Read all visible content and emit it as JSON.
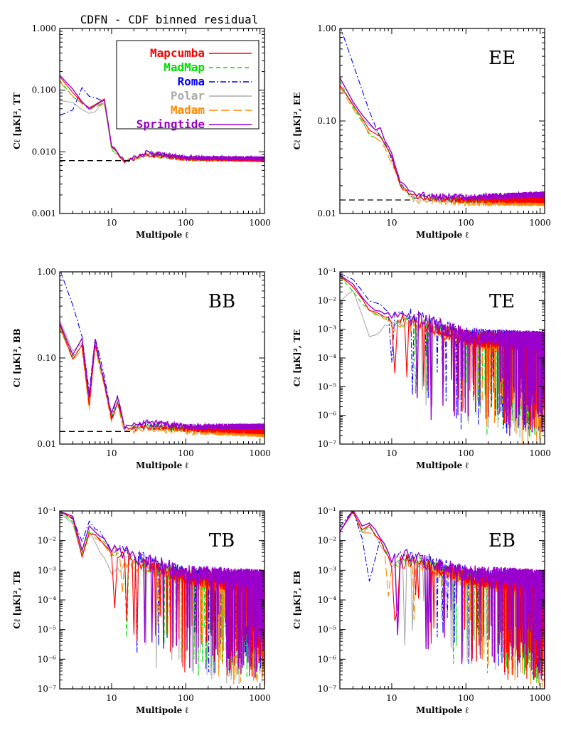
{
  "figure_title": "CDFN - CDF binned residual",
  "colors": {
    "Mapcumba": "#ff0000",
    "MadMap": "#00dd00",
    "Roma": "#0000ff",
    "Polar": "#aaaaaa",
    "Madam": "#ff8800",
    "Springtide": "#9900cc"
  },
  "chart_data": [
    {
      "type": "line",
      "panel": "TT",
      "title": "",
      "xlabel": "Multipole ℓ",
      "ylabel": "Cℓ [μK]², TT",
      "xscale": "log",
      "yscale": "log",
      "xlim": [
        2,
        1150
      ],
      "ylim": [
        0.001,
        1.0
      ],
      "x_ticks": [
        "10",
        "100",
        "1000"
      ],
      "y_ticks": [
        "0.001",
        "0.010",
        "0.100",
        "1.000"
      ],
      "panel_label": "",
      "legend": {
        "placement": "top-right",
        "entries": [
          "Mapcumba",
          "MadMap",
          "Roma",
          "Polar",
          "Madam",
          "Springtide"
        ]
      },
      "reference_level": 0.0072,
      "series": [
        {
          "name": "Mapcumba",
          "x": [
            2,
            3,
            5,
            8,
            10,
            15,
            30,
            100,
            1150
          ],
          "values": [
            0.17,
            0.09,
            0.05,
            0.07,
            0.012,
            0.007,
            0.009,
            0.0078,
            0.0075
          ]
        },
        {
          "name": "MadMap",
          "x": [
            2,
            3,
            5,
            8,
            10,
            15,
            30,
            100,
            1150
          ],
          "values": [
            0.15,
            0.08,
            0.05,
            0.065,
            0.011,
            0.007,
            0.009,
            0.0077,
            0.0074
          ]
        },
        {
          "name": "Roma",
          "x": [
            2,
            3,
            4,
            5,
            8,
            10,
            15,
            30,
            100,
            1150
          ],
          "values": [
            0.04,
            0.05,
            0.11,
            0.08,
            0.065,
            0.012,
            0.007,
            0.009,
            0.0078,
            0.0075
          ]
        },
        {
          "name": "Polar",
          "x": [
            2,
            3,
            5,
            8,
            10,
            15,
            30,
            100,
            1150
          ],
          "values": [
            0.07,
            0.06,
            0.04,
            0.06,
            0.012,
            0.007,
            0.009,
            0.0078,
            0.0075
          ]
        },
        {
          "name": "Madam",
          "x": [
            2,
            3,
            5,
            8,
            10,
            15,
            30,
            100,
            1150
          ],
          "values": [
            0.14,
            0.08,
            0.05,
            0.065,
            0.011,
            0.007,
            0.009,
            0.0076,
            0.0073
          ]
        },
        {
          "name": "Springtide",
          "x": [
            2,
            3,
            5,
            8,
            10,
            15,
            30,
            100,
            1150
          ],
          "values": [
            0.18,
            0.1,
            0.05,
            0.07,
            0.013,
            0.007,
            0.01,
            0.008,
            0.0078
          ]
        }
      ]
    },
    {
      "type": "line",
      "panel": "EE",
      "title": "",
      "xlabel": "Multipole ℓ",
      "ylabel": "Cℓ [μK]², EE",
      "xscale": "log",
      "yscale": "log",
      "xlim": [
        2,
        1150
      ],
      "ylim": [
        0.01,
        1.0
      ],
      "x_ticks": [
        "10",
        "100",
        "1000"
      ],
      "y_ticks": [
        "0.01",
        "0.10",
        "1.00"
      ],
      "panel_label": "EE",
      "reference_level": 0.014,
      "series": [
        {
          "name": "Mapcumba",
          "x": [
            2,
            3,
            5,
            7,
            10,
            13,
            20,
            100,
            1150
          ],
          "values": [
            0.25,
            0.15,
            0.08,
            0.07,
            0.04,
            0.02,
            0.015,
            0.014,
            0.014
          ]
        },
        {
          "name": "MadMap",
          "x": [
            2,
            3,
            5,
            7,
            10,
            13,
            20,
            100,
            1150
          ],
          "values": [
            0.28,
            0.15,
            0.07,
            0.07,
            0.04,
            0.02,
            0.015,
            0.014,
            0.014
          ]
        },
        {
          "name": "Roma",
          "x": [
            2,
            3,
            5,
            7,
            10,
            13,
            20,
            100,
            1150
          ],
          "values": [
            1.1,
            0.4,
            0.12,
            0.07,
            0.04,
            0.02,
            0.015,
            0.014,
            0.015
          ]
        },
        {
          "name": "Polar",
          "x": [
            2,
            3,
            5,
            7,
            10,
            13,
            20,
            100,
            1150
          ],
          "values": [
            0.25,
            0.15,
            0.09,
            0.07,
            0.04,
            0.02,
            0.015,
            0.014,
            0.014
          ]
        },
        {
          "name": "Madam",
          "x": [
            2,
            3,
            5,
            7,
            10,
            13,
            20,
            100,
            1150
          ],
          "values": [
            0.24,
            0.14,
            0.07,
            0.06,
            0.035,
            0.02,
            0.014,
            0.013,
            0.013
          ]
        },
        {
          "name": "Springtide",
          "x": [
            2,
            3,
            5,
            7,
            10,
            13,
            20,
            100,
            1150
          ],
          "values": [
            0.3,
            0.16,
            0.09,
            0.08,
            0.045,
            0.022,
            0.016,
            0.015,
            0.016
          ]
        }
      ]
    },
    {
      "type": "line",
      "panel": "BB",
      "title": "",
      "xlabel": "Multipole ℓ",
      "ylabel": "Cℓ [μK]², BB",
      "xscale": "log",
      "yscale": "log",
      "xlim": [
        2,
        1150
      ],
      "ylim": [
        0.01,
        1.0
      ],
      "x_ticks": [
        "10",
        "100",
        "1000"
      ],
      "y_ticks": [
        "0.01",
        "0.10",
        "1.00"
      ],
      "panel_label": "BB",
      "reference_level": 0.014,
      "series": [
        {
          "name": "Mapcumba",
          "x": [
            2,
            3,
            4,
            5,
            6,
            8,
            10,
            12,
            15,
            30,
            100,
            1150
          ],
          "values": [
            0.25,
            0.1,
            0.15,
            0.03,
            0.15,
            0.05,
            0.02,
            0.03,
            0.015,
            0.016,
            0.015,
            0.014
          ]
        },
        {
          "name": "MadMap",
          "x": [
            2,
            3,
            4,
            5,
            6,
            8,
            10,
            12,
            15,
            30,
            100,
            1150
          ],
          "values": [
            0.22,
            0.1,
            0.14,
            0.03,
            0.14,
            0.05,
            0.02,
            0.03,
            0.015,
            0.016,
            0.015,
            0.014
          ]
        },
        {
          "name": "Roma",
          "x": [
            2,
            3,
            4,
            5,
            6,
            8,
            10,
            12,
            15,
            30,
            100,
            1150
          ],
          "values": [
            1.1,
            0.4,
            0.18,
            0.04,
            0.18,
            0.06,
            0.02,
            0.035,
            0.015,
            0.017,
            0.015,
            0.015
          ]
        },
        {
          "name": "Polar",
          "x": [
            2,
            3,
            4,
            5,
            6,
            8,
            10,
            12,
            15,
            30,
            100,
            1150
          ],
          "values": [
            0.28,
            0.12,
            0.15,
            0.035,
            0.14,
            0.05,
            0.02,
            0.03,
            0.015,
            0.016,
            0.015,
            0.014
          ]
        },
        {
          "name": "Madam",
          "x": [
            2,
            3,
            4,
            5,
            6,
            8,
            10,
            12,
            15,
            30,
            100,
            1150
          ],
          "values": [
            0.23,
            0.1,
            0.13,
            0.025,
            0.14,
            0.045,
            0.018,
            0.03,
            0.014,
            0.015,
            0.014,
            0.013
          ]
        },
        {
          "name": "Springtide",
          "x": [
            2,
            3,
            4,
            5,
            6,
            8,
            10,
            12,
            15,
            30,
            100,
            1150
          ],
          "values": [
            0.26,
            0.11,
            0.16,
            0.035,
            0.16,
            0.05,
            0.022,
            0.035,
            0.016,
            0.018,
            0.016,
            0.016
          ]
        }
      ]
    },
    {
      "type": "line",
      "panel": "TE",
      "title": "",
      "xlabel": "Multipole ℓ",
      "ylabel": "Cℓ [μK]², TE",
      "xscale": "log",
      "yscale": "log",
      "xlim": [
        2,
        1150
      ],
      "ylim": [
        1e-07,
        0.1
      ],
      "x_ticks": [
        "10",
        "100",
        "1000"
      ],
      "y_ticks": [
        "10⁻⁷",
        "10⁻⁶",
        "10⁻⁵",
        "10⁻⁴",
        "10⁻³",
        "10⁻²",
        "10⁻¹"
      ],
      "panel_label": "TE",
      "series": [
        {
          "name": "Mapcumba",
          "x": [
            2,
            3,
            5,
            10,
            20,
            100,
            1150
          ],
          "values": [
            0.08,
            0.03,
            0.005,
            0.002,
            0.002,
            0.0005,
            0.0003
          ]
        },
        {
          "name": "MadMap",
          "x": [
            2,
            3,
            5,
            10,
            20,
            100,
            1150
          ],
          "values": [
            0.07,
            0.02,
            0.004,
            0.002,
            0.002,
            0.0005,
            0.0003
          ]
        },
        {
          "name": "Roma",
          "x": [
            2,
            3,
            5,
            10,
            20,
            100,
            1150
          ],
          "values": [
            0.09,
            0.05,
            0.01,
            0.004,
            0.003,
            0.0006,
            0.0004
          ]
        },
        {
          "name": "Polar",
          "x": [
            2,
            3,
            5,
            10,
            20,
            100,
            1150
          ],
          "values": [
            0.01,
            0.02,
            0.0005,
            0.002,
            0.002,
            0.0005,
            0.0003
          ]
        },
        {
          "name": "Madam",
          "x": [
            2,
            3,
            5,
            10,
            20,
            100,
            1150
          ],
          "values": [
            0.07,
            0.03,
            0.004,
            0.0015,
            0.0015,
            0.0004,
            0.0002
          ]
        },
        {
          "name": "Springtide",
          "x": [
            2,
            3,
            5,
            10,
            20,
            100,
            1150
          ],
          "values": [
            0.08,
            0.04,
            0.006,
            0.003,
            0.003,
            0.0006,
            0.0004
          ]
        }
      ]
    },
    {
      "type": "line",
      "panel": "TB",
      "title": "",
      "xlabel": "Multipole ℓ",
      "ylabel": "Cℓ [μK]², TB",
      "xscale": "log",
      "yscale": "log",
      "xlim": [
        2,
        1150
      ],
      "ylim": [
        1e-07,
        0.1
      ],
      "x_ticks": [
        "10",
        "100",
        "1000"
      ],
      "y_ticks": [
        "10⁻⁷",
        "10⁻⁶",
        "10⁻⁵",
        "10⁻⁴",
        "10⁻³",
        "10⁻²",
        "10⁻¹"
      ],
      "panel_label": "TB",
      "series": [
        {
          "name": "Mapcumba",
          "x": [
            2,
            3,
            4,
            5,
            10,
            20,
            100,
            1150
          ],
          "values": [
            0.1,
            0.05,
            0.003,
            0.02,
            0.005,
            0.002,
            0.0006,
            0.0003
          ]
        },
        {
          "name": "MadMap",
          "x": [
            2,
            3,
            4,
            5,
            10,
            20,
            100,
            1150
          ],
          "values": [
            0.1,
            0.05,
            0.003,
            0.02,
            0.005,
            0.002,
            0.0006,
            0.0003
          ]
        },
        {
          "name": "Roma",
          "x": [
            2,
            3,
            4,
            5,
            10,
            20,
            100,
            1150
          ],
          "values": [
            0.1,
            0.06,
            0.01,
            0.05,
            0.006,
            0.003,
            0.0007,
            0.0004
          ]
        },
        {
          "name": "Polar",
          "x": [
            2,
            3,
            4,
            5,
            10,
            20,
            100,
            1150
          ],
          "values": [
            0.09,
            0.04,
            0.003,
            0.02,
            0.001,
            0.002,
            0.0005,
            0.0003
          ]
        },
        {
          "name": "Madam",
          "x": [
            2,
            3,
            4,
            5,
            10,
            20,
            100,
            1150
          ],
          "values": [
            0.1,
            0.05,
            0.003,
            0.02,
            0.004,
            0.0015,
            0.0005,
            0.0002
          ]
        },
        {
          "name": "Springtide",
          "x": [
            2,
            3,
            4,
            5,
            10,
            20,
            100,
            1150
          ],
          "values": [
            0.1,
            0.06,
            0.004,
            0.03,
            0.006,
            0.003,
            0.0008,
            0.0005
          ]
        }
      ]
    },
    {
      "type": "line",
      "panel": "EB",
      "title": "",
      "xlabel": "Multipole ℓ",
      "ylabel": "Cℓ [μK]², EB",
      "xscale": "log",
      "yscale": "log",
      "xlim": [
        2,
        1150
      ],
      "ylim": [
        1e-07,
        0.1
      ],
      "x_ticks": [
        "10",
        "100",
        "1000"
      ],
      "y_ticks": [
        "10⁻⁷",
        "10⁻⁶",
        "10⁻⁵",
        "10⁻⁴",
        "10⁻³",
        "10⁻²",
        "10⁻¹"
      ],
      "panel_label": "EB",
      "series": [
        {
          "name": "Mapcumba",
          "x": [
            2,
            3,
            4,
            5,
            7,
            10,
            20,
            100,
            1150
          ],
          "values": [
            0.02,
            0.1,
            0.02,
            0.03,
            0.01,
            0.002,
            0.002,
            0.0006,
            0.0003
          ]
        },
        {
          "name": "MadMap",
          "x": [
            2,
            3,
            4,
            5,
            7,
            10,
            20,
            100,
            1150
          ],
          "values": [
            0.02,
            0.1,
            0.02,
            0.03,
            0.01,
            0.002,
            0.002,
            0.0006,
            0.0003
          ]
        },
        {
          "name": "Roma",
          "x": [
            2,
            3,
            4,
            5,
            7,
            10,
            20,
            100,
            1150
          ],
          "values": [
            0.03,
            0.1,
            0.01,
            0.0005,
            0.01,
            0.003,
            0.003,
            0.0007,
            0.0004
          ]
        },
        {
          "name": "Polar",
          "x": [
            2,
            3,
            4,
            5,
            7,
            10,
            20,
            100,
            1150
          ],
          "values": [
            0.02,
            0.09,
            0.02,
            0.03,
            0.008,
            0.002,
            0.002,
            0.0005,
            0.0003
          ]
        },
        {
          "name": "Madam",
          "x": [
            2,
            3,
            4,
            5,
            7,
            10,
            20,
            100,
            1150
          ],
          "values": [
            0.02,
            0.1,
            0.02,
            0.02,
            0.01,
            0.0015,
            0.0015,
            0.0005,
            0.0002
          ]
        },
        {
          "name": "Springtide",
          "x": [
            2,
            3,
            4,
            5,
            7,
            10,
            20,
            100,
            1150
          ],
          "values": [
            0.02,
            0.12,
            0.03,
            0.04,
            0.012,
            0.003,
            0.003,
            0.0008,
            0.0005
          ]
        }
      ]
    }
  ]
}
